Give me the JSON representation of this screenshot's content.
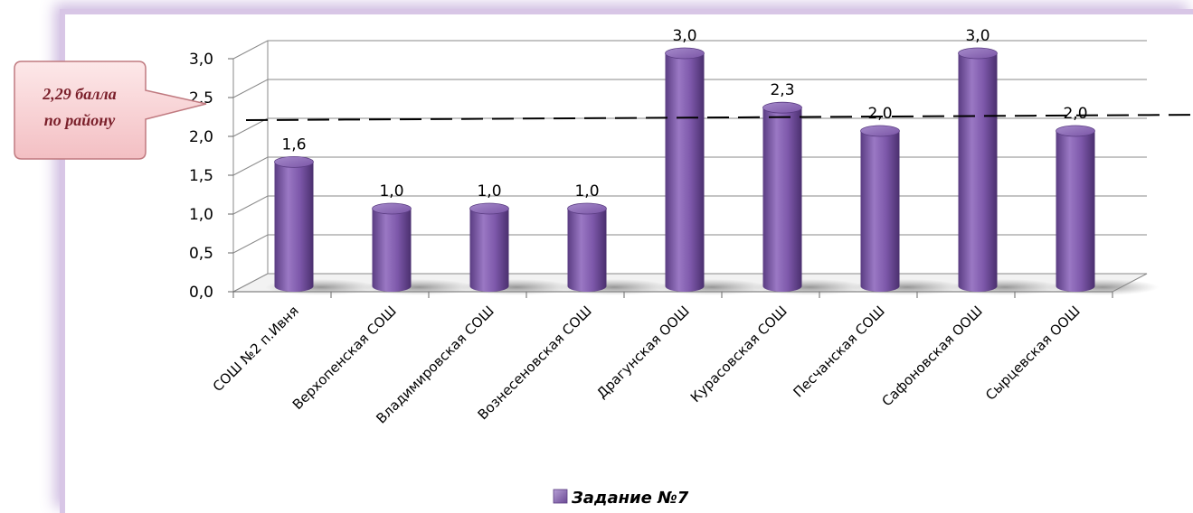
{
  "chart_data": {
    "type": "bar",
    "categories": [
      "СОШ №2 п.Ивня",
      "Верхопенская СОШ",
      "Владимировская СОШ",
      "Вознесеновская СОШ",
      "Драгунская ООШ",
      "Курасовская СОШ",
      "Песчанская СОШ",
      "Сафоновская ООШ",
      "Сырцевская ООШ"
    ],
    "series": [
      {
        "name": "Задание №7",
        "values": [
          1.6,
          1.0,
          1.0,
          1.0,
          3.0,
          2.3,
          2.0,
          3.0,
          2.0
        ],
        "color": "#7b55a6"
      }
    ],
    "data_labels": [
      "1,6",
      "1,0",
      "1,0",
      "1,0",
      "3,0",
      "2,3",
      "2,0",
      "3,0",
      "2,0"
    ],
    "y_ticks": [
      "0,0",
      "0,5",
      "1,0",
      "1,5",
      "2,0",
      "2,5",
      "3,0"
    ],
    "ylim": [
      0,
      3
    ],
    "reference_line": {
      "value": 2.29,
      "style": "dashed",
      "color": "#000000"
    },
    "callout": {
      "line1": "2,29 балла",
      "line2": "по району",
      "fill": "#f7d2d4",
      "text_color": "#7a1f2a"
    },
    "legend": {
      "label": "Задание №7",
      "position": "bottom"
    },
    "grid": true,
    "style": "3d-cylinder"
  }
}
